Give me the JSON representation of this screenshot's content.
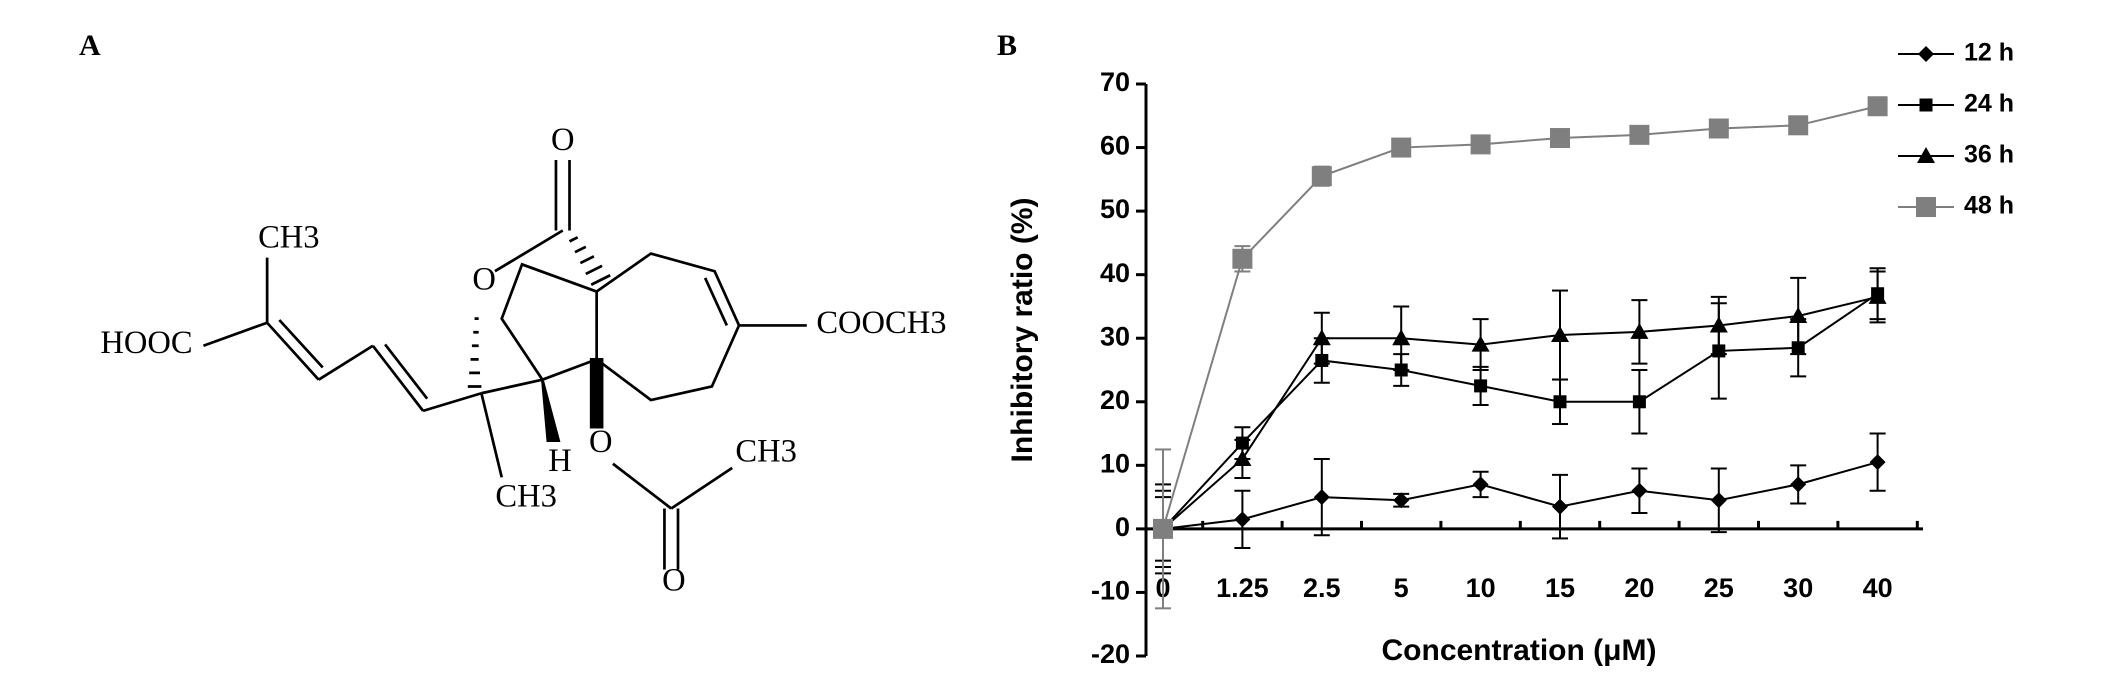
{
  "panel_a": {
    "label": "A",
    "labels": [
      "O",
      "CH3",
      "HOOC",
      "O",
      "COOCH3",
      "H",
      "O",
      "CH3",
      "CH3",
      "O"
    ]
  },
  "chart_data": {
    "type": "line",
    "panel_label": "B",
    "x_label": "Concentration (μM)",
    "y_label": "Inhibitory ratio (%)",
    "categories": [
      "0",
      "1.25",
      "2.5",
      "5",
      "10",
      "15",
      "20",
      "25",
      "30",
      "40"
    ],
    "ylim": [
      -20,
      70
    ],
    "yticks": [
      -20,
      -10,
      0,
      10,
      20,
      30,
      40,
      50,
      60,
      70
    ],
    "legend": "top-right",
    "series": [
      {
        "name": "12 h",
        "color": "#000000",
        "marker": "diamond",
        "values": [
          0,
          1.5,
          5,
          4.5,
          7,
          3.5,
          6,
          4.5,
          7,
          10.5
        ],
        "errors": [
          6,
          4.5,
          6,
          1,
          2,
          5,
          3.5,
          5,
          3,
          4.5
        ]
      },
      {
        "name": "24 h",
        "color": "#000000",
        "marker": "square",
        "values": [
          0,
          13.5,
          26.5,
          25,
          22.5,
          20,
          20,
          28,
          28.5,
          37
        ],
        "errors": [
          7,
          2.5,
          3.5,
          2.5,
          3,
          3.5,
          5,
          7.5,
          4.5,
          4
        ]
      },
      {
        "name": "36 h",
        "color": "#000000",
        "marker": "triangle",
        "values": [
          0,
          11,
          30,
          30,
          29,
          30.5,
          31,
          32,
          33.5,
          36.5
        ],
        "errors": [
          5,
          3,
          4,
          5,
          4,
          7,
          5,
          4.5,
          6,
          4
        ]
      },
      {
        "name": "48 h",
        "color": "#7f7f7f",
        "marker": "big-square",
        "values": [
          0,
          42.5,
          55.5,
          60,
          60.5,
          61.5,
          62,
          63,
          63.5,
          66.5
        ],
        "errors": [
          12.5,
          2,
          1.5,
          0.5,
          0.5,
          0.5,
          0.5,
          0.5,
          0.5,
          0.5
        ]
      }
    ]
  }
}
